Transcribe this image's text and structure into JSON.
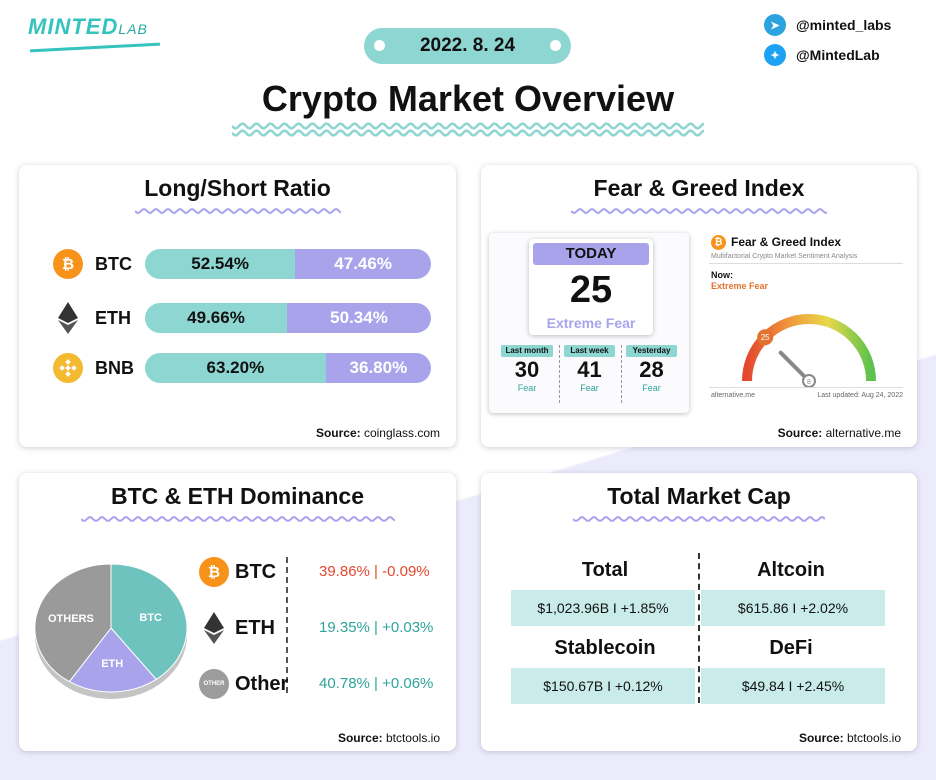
{
  "header": {
    "logo_main": "MINTED",
    "logo_sub": "LAB",
    "date": "2022. 8. 24",
    "title": "Crypto Market Overview",
    "social": [
      {
        "icon": "telegram-icon",
        "handle": "@minted_labs"
      },
      {
        "icon": "twitter-icon",
        "handle": "@MintedLab"
      }
    ]
  },
  "long_short": {
    "title": "Long/Short Ratio",
    "rows": [
      {
        "symbol": "BTC",
        "long": "52.54%",
        "short": "47.46%",
        "long_value": 52.54,
        "icon": "bitcoin-icon",
        "color": "#f7931a"
      },
      {
        "symbol": "ETH",
        "long": "49.66%",
        "short": "50.34%",
        "long_value": 49.66,
        "icon": "ethereum-icon",
        "color": "#333333"
      },
      {
        "symbol": "BNB",
        "long": "63.20%",
        "short": "36.80%",
        "long_value": 63.2,
        "icon": "bnb-icon",
        "color": "#f3ba2f"
      }
    ],
    "source_label": "Source:",
    "source": "coinglass.com"
  },
  "fear_greed": {
    "title": "Fear & Greed Index",
    "today_label": "TODAY",
    "today_value": "25",
    "today_status": "Extreme Fear",
    "history": [
      {
        "label": "Last month",
        "value": "30",
        "status": "Fear"
      },
      {
        "label": "Last week",
        "value": "41",
        "status": "Fear"
      },
      {
        "label": "Yesterday",
        "value": "28",
        "status": "Fear"
      }
    ],
    "widget": {
      "title": "Fear & Greed Index",
      "subtitle": "Multifactorial Crypto Market Sentiment Analysis",
      "now_label": "Now:",
      "now_status": "Extreme Fear",
      "gauge_value": 25,
      "gauge_value_text": "25",
      "footer_left": "alternative.me",
      "footer_right": "Last updated: Aug 24, 2022"
    },
    "source_label": "Source:",
    "source": "alternative.me"
  },
  "dominance": {
    "title": "BTC & ETH Dominance",
    "pie_labels": {
      "btc": "BTC",
      "eth": "ETH",
      "other": "OTHERS"
    },
    "rows": [
      {
        "name": "BTC",
        "value": "39.86% | -0.09%",
        "share": 39.86,
        "color": "#e4472f",
        "icon": "bitcoin-icon"
      },
      {
        "name": "ETH",
        "value": "19.35% | +0.03%",
        "share": 19.35,
        "color": "#2fa39c",
        "icon": "ethereum-icon"
      },
      {
        "name": "Other",
        "value": "40.78% | +0.06%",
        "share": 40.78,
        "color": "#2fa39c",
        "icon": "other-icon"
      }
    ],
    "other_icon_text": "OTHER",
    "source_label": "Source:",
    "source": "btctools.io"
  },
  "market_cap": {
    "title": "Total Market Cap",
    "cells": [
      {
        "label": "Total",
        "value": "$1,023.96B I +1.85%"
      },
      {
        "label": "Altcoin",
        "value": "$615.86 I +2.02%"
      },
      {
        "label": "Stablecoin",
        "value": "$150.67B I +0.12%"
      },
      {
        "label": "DeFi",
        "value": "$49.84 I +2.45%"
      }
    ],
    "source_label": "Source:",
    "source": "btctools.io"
  }
}
